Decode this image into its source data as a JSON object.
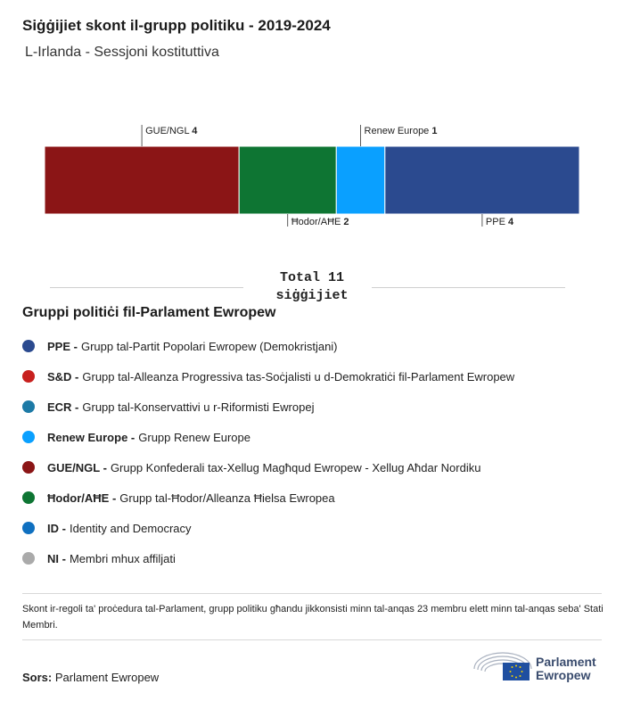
{
  "header": {
    "title": "Siġġijiet skont il-grupp politiku - 2019-2024",
    "subtitle": "L-Irlanda - Sessjoni kostituttiva"
  },
  "chart_data": {
    "type": "bar",
    "orientation": "horizontal-stacked",
    "categories": [
      "GUE/NGL",
      "Ħodor/AĦE",
      "Renew Europe",
      "PPE"
    ],
    "values": [
      4,
      2,
      1,
      4
    ],
    "colors": [
      "#8b1516",
      "#0e7533",
      "#0aa0ff",
      "#2b4a8f"
    ],
    "label_positions": [
      "top",
      "bottom",
      "top",
      "bottom"
    ],
    "total": 11
  },
  "total": {
    "line1": "Total 11",
    "line2": "siġġijiet"
  },
  "legend": {
    "title": "Gruppi politiċi fil-Parlament Ewropew",
    "items": [
      {
        "abbr": "PPE -",
        "name": "Grupp tal-Partit Popolari Ewropew (Demokristjani)",
        "color": "#2b4a8f"
      },
      {
        "abbr": "S&D -",
        "name": "Grupp tal-Alleanza Progressiva tas-Soċjalisti u d-Demokratiċi fil-Parlament Ewropew",
        "color": "#c8201e"
      },
      {
        "abbr": "ECR -",
        "name": "Grupp tal-Konservattivi u r-Riformisti Ewropej",
        "color": "#1d7aa6"
      },
      {
        "abbr": "Renew Europe -",
        "name": "Grupp Renew Europe",
        "color": "#0aa0ff"
      },
      {
        "abbr": "GUE/NGL -",
        "name": "Grupp Konfederali tax-Xellug Magħqud Ewropew - Xellug Aħdar Nordiku",
        "color": "#8b1516"
      },
      {
        "abbr": "Ħodor/AĦE -",
        "name": "Grupp tal-Ħodor/Alleanza Ħielsa Ewropea",
        "color": "#0e7533"
      },
      {
        "abbr": "ID -",
        "name": "Identity and Democracy",
        "color": "#0f70c0"
      },
      {
        "abbr": "NI -",
        "name": "Membri mhux affiljati",
        "color": "#aaaaaa"
      }
    ]
  },
  "note": "Skont ir-regoli ta' proċedura tal-Parlament, grupp politiku għandu jikkonsisti minn tal-anqas 23 membru elett minn tal-anqas seba' Stati Membri.",
  "source": {
    "label": "Sors:",
    "value": "Parlament Ewropew"
  },
  "logo": {
    "line1": "Parlament",
    "line2": "Ewropew"
  }
}
